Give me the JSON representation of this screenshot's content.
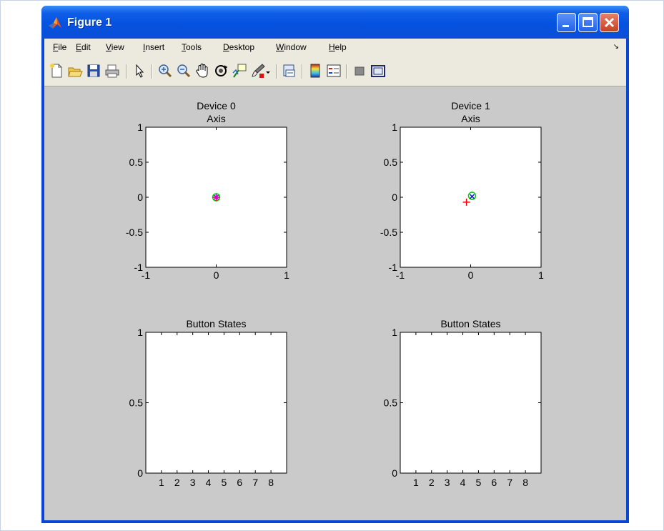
{
  "window": {
    "title": "Figure 1",
    "controls": {
      "minimize": "minimize",
      "maximize": "maximize",
      "close": "close"
    }
  },
  "menubar": {
    "items": [
      {
        "label": "File",
        "u": "F",
        "rest": "ile"
      },
      {
        "label": "Edit",
        "u": "E",
        "rest": "dit"
      },
      {
        "label": "View",
        "u": "V",
        "rest": "iew"
      },
      {
        "label": "Insert",
        "u": "I",
        "rest": "nsert"
      },
      {
        "label": "Tools",
        "u": "T",
        "rest": "ools"
      },
      {
        "label": "Desktop",
        "u": "D",
        "rest": "esktop"
      },
      {
        "label": "Window",
        "u": "W",
        "rest": "indow"
      },
      {
        "label": "Help",
        "u": "H",
        "rest": "elp"
      }
    ]
  },
  "toolbar": {
    "icons": [
      "new-figure-icon",
      "open-file-icon",
      "save-icon",
      "print-icon",
      "pointer-icon",
      "zoom-in-icon",
      "zoom-out-icon",
      "pan-hand-icon",
      "rotate-3d-icon",
      "data-cursor-icon",
      "brush-icon",
      "link-plot-icon",
      "colorbar-icon",
      "legend-icon",
      "hide-plot-tools-icon",
      "show-plot-tools-icon"
    ]
  },
  "chart_data": [
    {
      "type": "scatter",
      "title": "Device 0",
      "subtitle": "Axis",
      "xlim": [
        -1,
        1
      ],
      "ylim": [
        -1,
        1
      ],
      "xticks": [
        "-1",
        "0",
        "1"
      ],
      "yticks": [
        "1",
        "0.5",
        "0",
        "-0.5",
        "-1"
      ],
      "series": [
        {
          "marker": "o",
          "color": "#00cc00",
          "x": [
            0
          ],
          "y": [
            0
          ]
        },
        {
          "marker": "x",
          "color": "#0000ff",
          "x": [
            0
          ],
          "y": [
            0
          ]
        },
        {
          "marker": "+",
          "color": "#ff0000",
          "x": [
            0
          ],
          "y": [
            0
          ]
        },
        {
          "marker": "*",
          "color": "#cc00cc",
          "x": [
            0
          ],
          "y": [
            0
          ]
        }
      ]
    },
    {
      "type": "scatter",
      "title": "Device 1",
      "subtitle": "Axis",
      "xlim": [
        -1,
        1
      ],
      "ylim": [
        -1,
        1
      ],
      "xticks": [
        "-1",
        "0",
        "1"
      ],
      "yticks": [
        "1",
        "0.5",
        "0",
        "-0.5",
        "-1"
      ],
      "series": [
        {
          "marker": "o",
          "color": "#00cc00",
          "x": [
            0.02
          ],
          "y": [
            0.02
          ]
        },
        {
          "marker": "x",
          "color": "#0000ff",
          "x": [
            0.02
          ],
          "y": [
            0.01
          ]
        },
        {
          "marker": "+",
          "color": "#ff0000",
          "x": [
            -0.06
          ],
          "y": [
            -0.07
          ]
        }
      ]
    },
    {
      "type": "bar",
      "title": "Button States",
      "subtitle": "",
      "xlim": [
        0,
        9
      ],
      "ylim": [
        0,
        1
      ],
      "categories": [
        "1",
        "2",
        "3",
        "4",
        "5",
        "6",
        "7",
        "8"
      ],
      "values": [
        0,
        0,
        0,
        0,
        0,
        0,
        0,
        0
      ],
      "yticks": [
        "1",
        "0.5",
        "0"
      ]
    },
    {
      "type": "bar",
      "title": "Button States",
      "subtitle": "",
      "xlim": [
        0,
        9
      ],
      "ylim": [
        0,
        1
      ],
      "categories": [
        "1",
        "2",
        "3",
        "4",
        "5",
        "6",
        "7",
        "8"
      ],
      "values": [
        0,
        0,
        0,
        0,
        0,
        0,
        0,
        0
      ],
      "yticks": [
        "1",
        "0.5",
        "0"
      ]
    }
  ]
}
